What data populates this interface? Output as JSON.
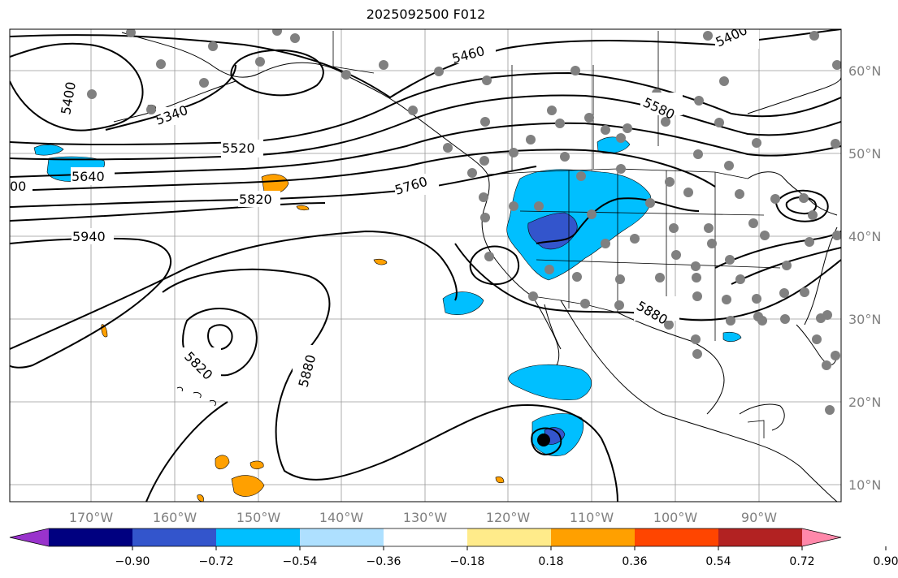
{
  "title": "2025092500 F012",
  "lat_labels": [
    "60°N",
    "50°N",
    "40°N",
    "30°N",
    "20°N",
    "10°N"
  ],
  "lon_labels": [
    "170°W",
    "160°W",
    "150°W",
    "140°W",
    "130°W",
    "120°W",
    "110°W",
    "100°W",
    "90°W"
  ],
  "colorbar": {
    "tick_labels": [
      "−0.90",
      "−0.72",
      "−0.54",
      "−0.36",
      "−0.18",
      "0.18",
      "0.36",
      "0.54",
      "0.72",
      "0.90"
    ],
    "colors": [
      "#9933cc",
      "#000080",
      "#3355cc",
      "#00bfff",
      "#aee0ff",
      "#ffffff",
      "#ffeb8a",
      "#ffa000",
      "#ff4500",
      "#b22222",
      "#ff88aa"
    ]
  },
  "contour_labels": [
    "5400",
    "5340",
    "5520",
    "5640",
    "5820",
    "5940",
    "5460",
    "5580",
    "5760",
    "5880",
    "5820",
    "5880",
    "5400",
    "00"
  ],
  "colors": {
    "land_outline": "#000000",
    "contour": "#000000",
    "gridline": "#999999",
    "station_dot": "#808080",
    "low_center": "#000000"
  }
}
